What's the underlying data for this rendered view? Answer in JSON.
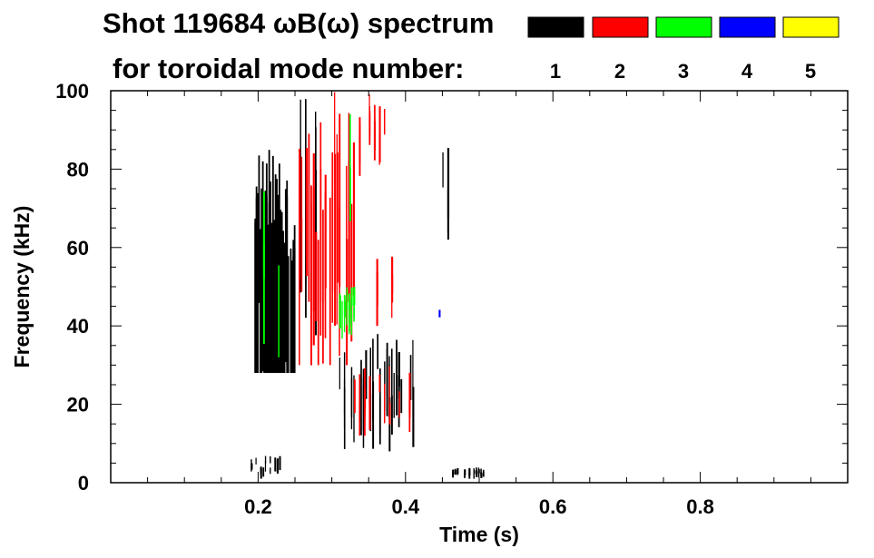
{
  "chart_data": {
    "type": "spectrogram",
    "title_line1": "Shot 119684 ωB(ω) spectrum",
    "title_line2": "for toroidal mode number:",
    "xlabel": "Time (s)",
    "ylabel": "Frequency (kHz)",
    "xlim": [
      0.0,
      1.0
    ],
    "ylim": [
      0,
      100
    ],
    "x_ticks": [
      0.2,
      0.4,
      0.6,
      0.8
    ],
    "x_tick_labels": [
      "0.2",
      "0.4",
      "0.6",
      "0.8"
    ],
    "y_ticks": [
      0,
      20,
      40,
      60,
      80,
      100
    ],
    "y_tick_labels": [
      "0",
      "20",
      "40",
      "60",
      "80",
      "100"
    ],
    "legend": [
      {
        "mode": "1",
        "color": "#000000"
      },
      {
        "mode": "2",
        "color": "#ff0000"
      },
      {
        "mode": "3",
        "color": "#00ff00"
      },
      {
        "mode": "4",
        "color": "#0000ff"
      },
      {
        "mode": "5",
        "color": "#ffff00"
      }
    ],
    "features": [
      {
        "mode": 1,
        "t_start": 0.195,
        "t_end": 0.25,
        "f_min": 28,
        "f_max": 85,
        "density": "dense"
      },
      {
        "mode": 1,
        "t_start": 0.25,
        "t_end": 0.3,
        "f_min": 28,
        "f_max": 100,
        "density": "sparse"
      },
      {
        "mode": 1,
        "t_start": 0.31,
        "t_end": 0.41,
        "f_min": 8,
        "f_max": 38,
        "density": "medium"
      },
      {
        "mode": 1,
        "t_start": 0.19,
        "t_end": 0.23,
        "f_min": 1,
        "f_max": 7,
        "density": "medium"
      },
      {
        "mode": 1,
        "t_start": 0.46,
        "t_end": 0.51,
        "f_min": 1,
        "f_max": 4,
        "density": "medium"
      },
      {
        "mode": 1,
        "t_start": 0.45,
        "t_end": 0.46,
        "f_min": 62,
        "f_max": 88,
        "density": "sparse"
      },
      {
        "mode": 2,
        "t_start": 0.255,
        "t_end": 0.33,
        "f_min": 30,
        "f_max": 100,
        "density": "medium"
      },
      {
        "mode": 2,
        "t_start": 0.33,
        "t_end": 0.4,
        "f_min": 78,
        "f_max": 100,
        "density": "sparse"
      },
      {
        "mode": 2,
        "t_start": 0.33,
        "t_end": 0.42,
        "f_min": 12,
        "f_max": 30,
        "density": "sparse"
      },
      {
        "mode": 2,
        "t_start": 0.34,
        "t_end": 0.4,
        "f_min": 40,
        "f_max": 58,
        "density": "sparse"
      },
      {
        "mode": 3,
        "t_start": 0.31,
        "t_end": 0.33,
        "f_min": 36,
        "f_max": 50,
        "density": "medium"
      },
      {
        "mode": 3,
        "t_start": 0.2,
        "t_end": 0.23,
        "f_min": 32,
        "f_max": 78,
        "density": "sparse"
      },
      {
        "mode": 3,
        "t_start": 0.29,
        "t_end": 0.35,
        "f_min": 62,
        "f_max": 100,
        "density": "sparse"
      },
      {
        "mode": 4,
        "t_start": 0.445,
        "t_end": 0.45,
        "f_min": 42,
        "f_max": 45,
        "density": "sparse"
      }
    ]
  }
}
